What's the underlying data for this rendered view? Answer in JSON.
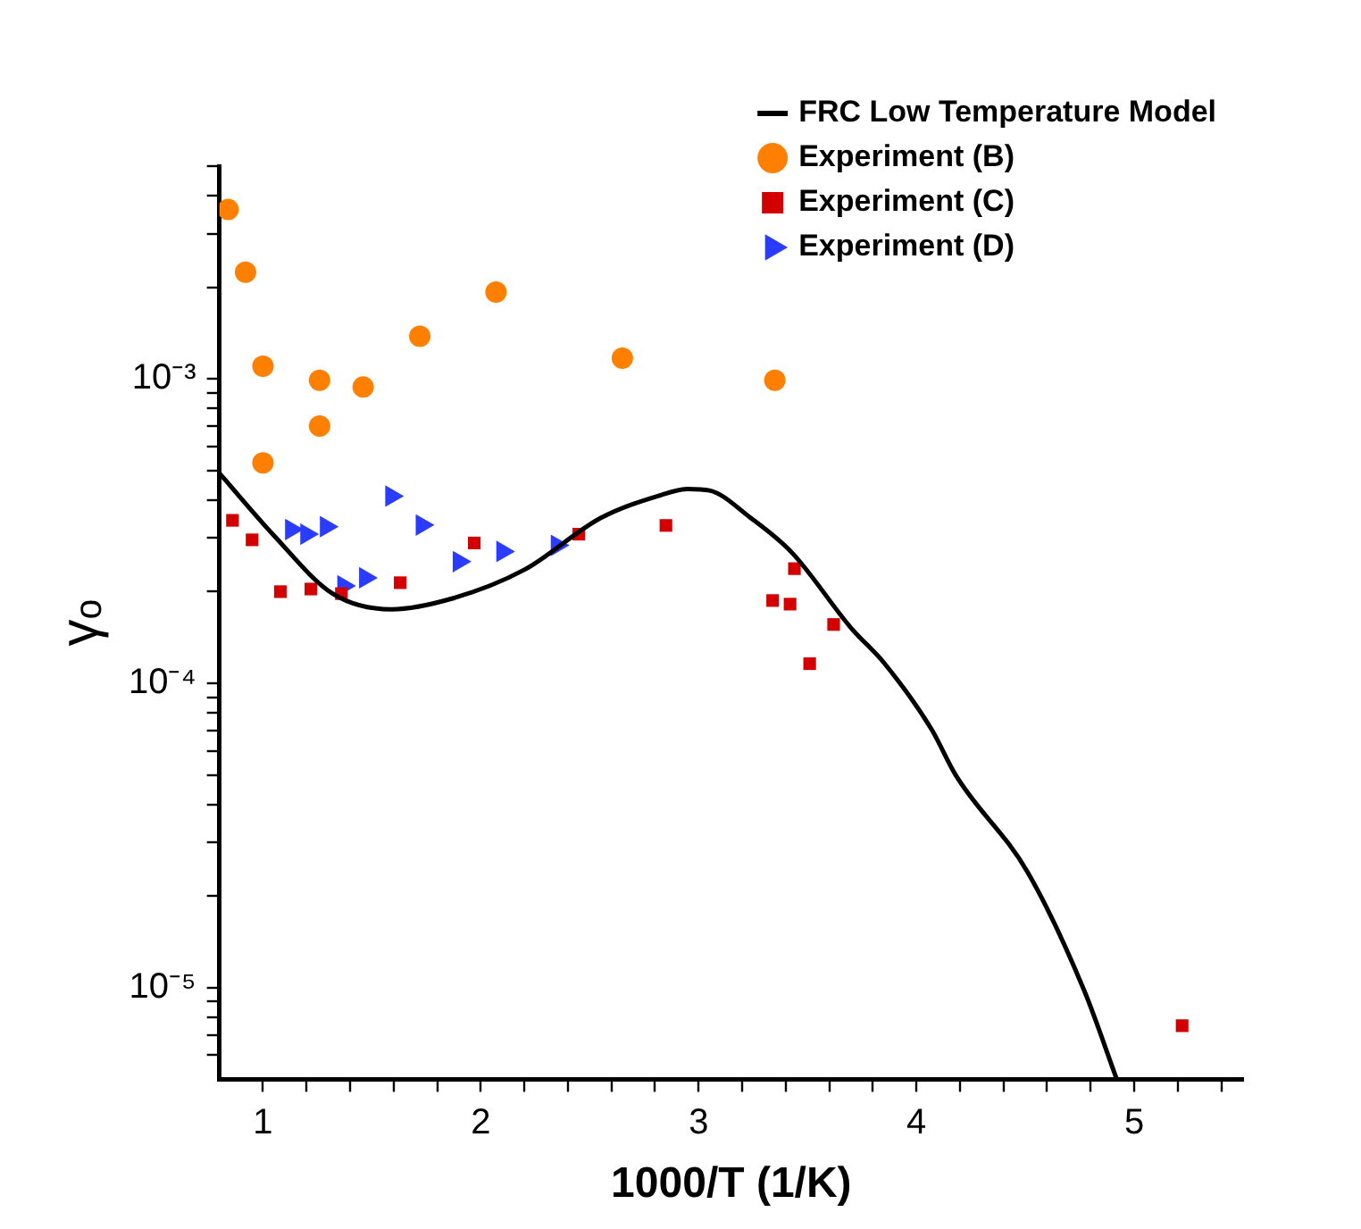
{
  "chart_data": {
    "type": "scatter",
    "xlabel": "1000/T (1/K)",
    "ylabel": "γₒ",
    "log": "y",
    "grid": false,
    "legend": "top right",
    "xlim": [
      0.8,
      5.5
    ],
    "ylim": [
      5e-06,
      0.005
    ],
    "xticks": [
      1,
      {
        "value": 1.2,
        "label": null
      },
      {
        "value": 1.4,
        "label": null
      },
      {
        "value": 1.6,
        "label": null
      },
      {
        "value": 1.8,
        "label": null
      },
      2,
      {
        "value": 2.2,
        "label": null
      },
      {
        "value": 2.4,
        "label": null
      },
      {
        "value": 2.6,
        "label": null
      },
      {
        "value": 2.8,
        "label": null
      },
      3,
      {
        "value": 3.2,
        "label": null
      },
      {
        "value": 3.4,
        "label": null
      },
      {
        "value": 3.6,
        "label": null
      },
      {
        "value": 3.8,
        "label": null
      },
      4,
      {
        "value": 4.2,
        "label": null
      },
      {
        "value": 4.4,
        "label": null
      },
      {
        "value": 4.6,
        "label": null
      },
      {
        "value": 4.8,
        "label": null
      },
      5,
      {
        "value": 5.2,
        "label": null
      },
      {
        "value": 5.4,
        "label": null
      }
    ],
    "yticks": [
      {
        "value": 6e-06,
        "label": null
      },
      {
        "value": 7e-06,
        "label": null
      },
      {
        "value": 8e-06,
        "label": null
      },
      {
        "value": 9e-06,
        "label": null
      },
      {
        "value": 1e-05,
        "label": "10⁻⁵"
      },
      {
        "value": 2e-05,
        "label": null
      },
      {
        "value": 3e-05,
        "label": null
      },
      {
        "value": 4e-05,
        "label": null
      },
      {
        "value": 5e-05,
        "label": null
      },
      {
        "value": 6e-05,
        "label": null
      },
      {
        "value": 7e-05,
        "label": null
      },
      {
        "value": 8e-05,
        "label": null
      },
      {
        "value": 9e-05,
        "label": null
      },
      {
        "value": 0.0001,
        "label": "10⁻⁴"
      },
      {
        "value": 0.0002,
        "label": null
      },
      {
        "value": 0.0003,
        "label": null
      },
      {
        "value": 0.0004,
        "label": null
      },
      {
        "value": 0.0005,
        "label": null
      },
      {
        "value": 0.0006,
        "label": null
      },
      {
        "value": 0.0007,
        "label": null
      },
      {
        "value": 0.0008,
        "label": null
      },
      {
        "value": 0.0009,
        "label": null
      },
      {
        "value": 0.001,
        "label": "10⁻³"
      },
      {
        "value": 0.002,
        "label": null
      },
      {
        "value": 0.003,
        "label": null
      },
      {
        "value": 0.004,
        "label": null
      },
      {
        "value": 0.005,
        "label": null
      }
    ],
    "series": [
      {
        "name": "FRC Low Temperature Model",
        "type": "line",
        "color": "#000000",
        "marker": "none",
        "line_style": "solid",
        "x": [
          0.8,
          1.05,
          1.32,
          1.59,
          1.87,
          2.2,
          2.55,
          2.83,
          2.95,
          3.05,
          3.24,
          3.43,
          3.7,
          3.85,
          4.07,
          4.18,
          4.51,
          4.77,
          4.92
        ],
        "values": [
          0.00049,
          0.000306,
          0.000197,
          0.000175,
          0.00019,
          0.000236,
          0.000349,
          0.000416,
          0.000435,
          0.00043,
          0.000349,
          0.000268,
          0.000152,
          0.000117,
          7.05e-05,
          5e-05,
          2.4e-05,
          9.8e-06,
          5e-06
        ]
      },
      {
        "name": "Experiment (B)",
        "type": "scatter",
        "color": "#ff8000",
        "marker": "circle",
        "x": [
          0.84,
          0.92,
          1.0,
          1.0,
          1.26,
          1.26,
          1.46,
          1.72,
          2.07,
          2.65,
          3.35
        ],
        "values": [
          0.0036,
          0.00224,
          0.0011,
          0.00053,
          0.00099,
          0.0007,
          0.00094,
          0.00138,
          0.00193,
          0.00117,
          0.00099
        ]
      },
      {
        "name": "Experiment (C)",
        "type": "scatter",
        "color": "#d40000",
        "marker": "square",
        "x": [
          0.86,
          0.95,
          1.08,
          1.22,
          1.36,
          1.63,
          1.97,
          2.45,
          2.85,
          3.34,
          3.42,
          3.44,
          3.51,
          3.62,
          5.22
        ],
        "values": [
          0.000343,
          0.000296,
          0.0002,
          0.000204,
          0.000197,
          0.000214,
          0.000289,
          0.000309,
          0.00033,
          0.000187,
          0.000182,
          0.000238,
          0.000116,
          0.000156,
          7.5e-06
        ]
      },
      {
        "name": "Experiment (D)",
        "type": "scatter",
        "color": "#2a3cff",
        "marker": "triangle",
        "x": [
          1.13,
          1.2,
          1.29,
          1.37,
          1.47,
          1.59,
          1.73,
          1.9,
          2.1,
          2.35
        ],
        "values": [
          0.00032,
          0.000309,
          0.000327,
          0.000209,
          0.000222,
          0.000412,
          0.000331,
          0.000251,
          0.000271,
          0.000284
        ]
      }
    ]
  }
}
